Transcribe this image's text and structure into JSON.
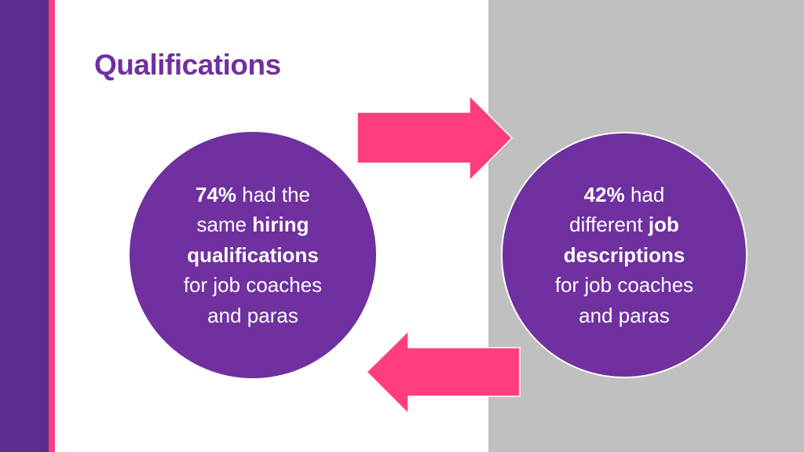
{
  "title": "Qualifications",
  "circles": [
    {
      "lines": [
        [
          {
            "text": "74%",
            "bold": true
          },
          {
            "text": "had the",
            "bold": false
          }
        ],
        [
          {
            "text": "same",
            "bold": false
          },
          {
            "text": "hiring",
            "bold": true
          }
        ],
        [
          {
            "text": "qualifications",
            "bold": true
          }
        ],
        [
          {
            "text": "for job coaches",
            "bold": false
          }
        ],
        [
          {
            "text": "and paras",
            "bold": false
          }
        ]
      ]
    },
    {
      "lines": [
        [
          {
            "text": "42%",
            "bold": true
          },
          {
            "text": "had",
            "bold": false
          }
        ],
        [
          {
            "text": "different",
            "bold": false
          },
          {
            "text": "job",
            "bold": true
          }
        ],
        [
          {
            "text": "descriptions",
            "bold": true
          }
        ],
        [
          {
            "text": "for job coaches",
            "bold": false
          }
        ],
        [
          {
            "text": "and paras",
            "bold": false
          }
        ]
      ]
    }
  ]
}
